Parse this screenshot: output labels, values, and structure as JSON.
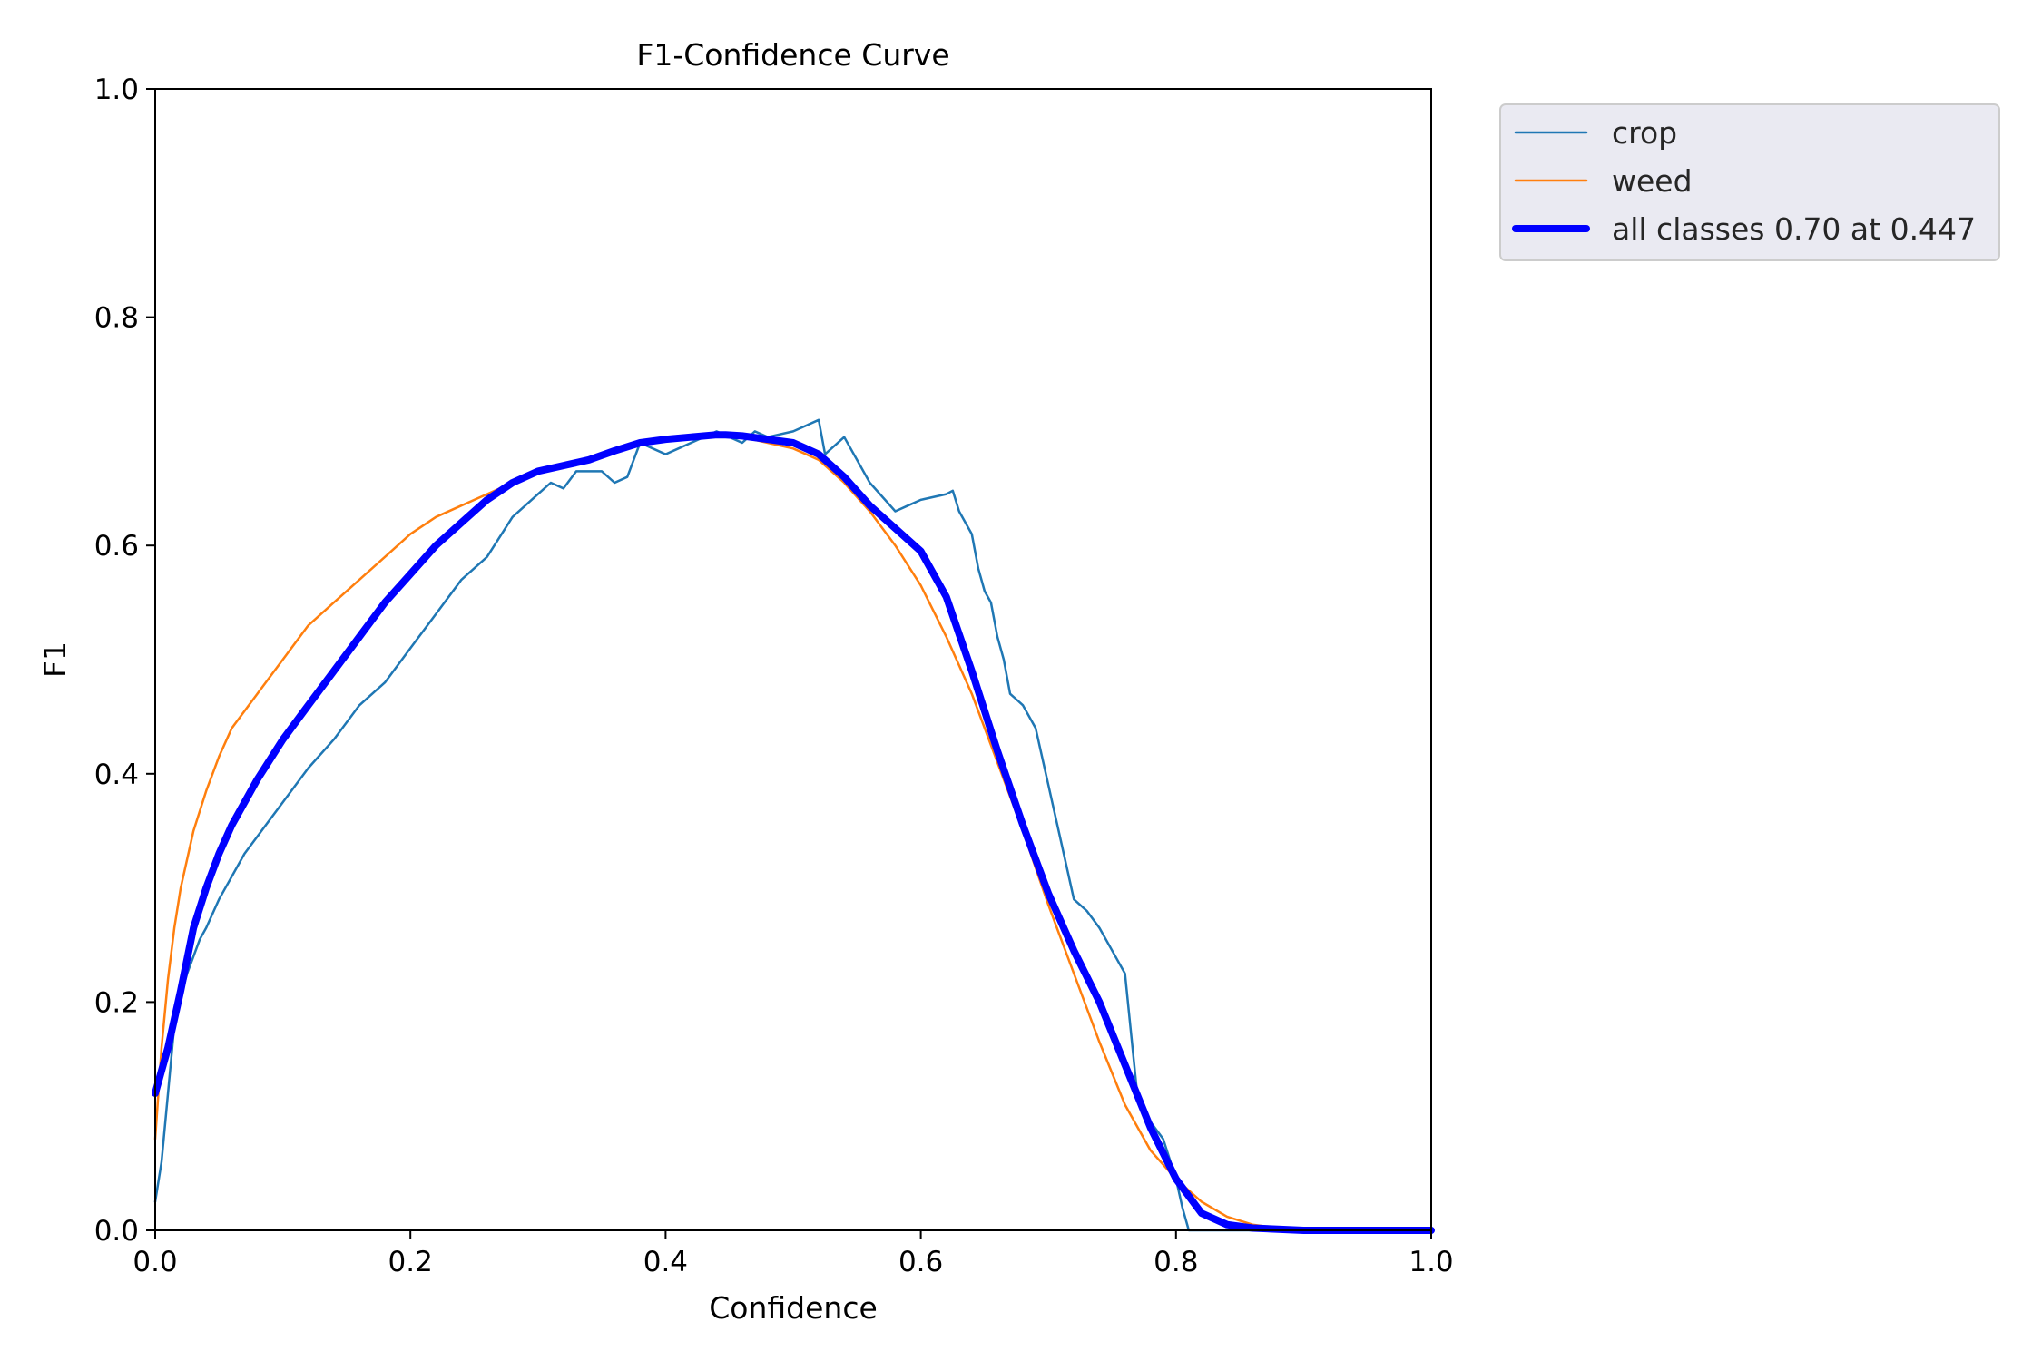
{
  "chart_data": {
    "type": "line",
    "title": "F1-Confidence Curve",
    "xlabel": "Confidence",
    "ylabel": "F1",
    "xlim": [
      0,
      1
    ],
    "ylim": [
      0,
      1
    ],
    "xticks": [
      "0.0",
      "0.2",
      "0.4",
      "0.6",
      "0.8",
      "1.0"
    ],
    "yticks": [
      "0.0",
      "0.2",
      "0.4",
      "0.6",
      "0.8",
      "1.0"
    ],
    "grid": false,
    "legend_position": "outside-top-right",
    "series": [
      {
        "name": "crop",
        "color": "#1f77b4",
        "x": [
          0.0,
          0.005,
          0.01,
          0.015,
          0.02,
          0.025,
          0.03,
          0.035,
          0.04,
          0.05,
          0.06,
          0.07,
          0.08,
          0.09,
          0.1,
          0.12,
          0.14,
          0.16,
          0.18,
          0.2,
          0.22,
          0.24,
          0.26,
          0.28,
          0.3,
          0.31,
          0.32,
          0.33,
          0.35,
          0.36,
          0.37,
          0.38,
          0.39,
          0.4,
          0.41,
          0.42,
          0.43,
          0.44,
          0.45,
          0.46,
          0.47,
          0.48,
          0.5,
          0.52,
          0.525,
          0.54,
          0.56,
          0.58,
          0.59,
          0.6,
          0.62,
          0.625,
          0.63,
          0.64,
          0.645,
          0.65,
          0.655,
          0.66,
          0.665,
          0.67,
          0.675,
          0.68,
          0.69,
          0.7,
          0.71,
          0.72,
          0.73,
          0.74,
          0.75,
          0.76,
          0.77,
          0.78,
          0.79,
          0.8,
          0.805,
          0.81,
          0.85,
          0.9,
          1.0
        ],
        "y": [
          0.025,
          0.06,
          0.12,
          0.18,
          0.205,
          0.225,
          0.24,
          0.255,
          0.265,
          0.29,
          0.31,
          0.33,
          0.345,
          0.36,
          0.375,
          0.405,
          0.43,
          0.46,
          0.48,
          0.51,
          0.54,
          0.57,
          0.59,
          0.625,
          0.645,
          0.655,
          0.65,
          0.665,
          0.665,
          0.655,
          0.66,
          0.69,
          0.685,
          0.68,
          0.685,
          0.69,
          0.695,
          0.7,
          0.695,
          0.69,
          0.7,
          0.695,
          0.7,
          0.71,
          0.68,
          0.695,
          0.655,
          0.63,
          0.635,
          0.64,
          0.645,
          0.648,
          0.63,
          0.61,
          0.58,
          0.56,
          0.55,
          0.52,
          0.5,
          0.47,
          0.465,
          0.46,
          0.44,
          0.39,
          0.34,
          0.29,
          0.28,
          0.265,
          0.245,
          0.225,
          0.115,
          0.095,
          0.08,
          0.045,
          0.02,
          0.0,
          0.0,
          0.0,
          0.0
        ]
      },
      {
        "name": "weed",
        "color": "#ff7f0e",
        "x": [
          0.0,
          0.005,
          0.01,
          0.015,
          0.02,
          0.03,
          0.04,
          0.05,
          0.06,
          0.08,
          0.1,
          0.12,
          0.14,
          0.16,
          0.18,
          0.2,
          0.22,
          0.24,
          0.26,
          0.28,
          0.3,
          0.32,
          0.34,
          0.36,
          0.38,
          0.4,
          0.42,
          0.44,
          0.46,
          0.48,
          0.5,
          0.52,
          0.54,
          0.56,
          0.58,
          0.6,
          0.62,
          0.64,
          0.66,
          0.68,
          0.7,
          0.72,
          0.74,
          0.76,
          0.78,
          0.8,
          0.82,
          0.84,
          0.86,
          0.88,
          0.9,
          1.0
        ],
        "y": [
          0.08,
          0.16,
          0.22,
          0.265,
          0.3,
          0.35,
          0.385,
          0.415,
          0.44,
          0.47,
          0.5,
          0.53,
          0.55,
          0.57,
          0.59,
          0.61,
          0.625,
          0.635,
          0.645,
          0.655,
          0.665,
          0.67,
          0.675,
          0.685,
          0.69,
          0.695,
          0.697,
          0.697,
          0.695,
          0.69,
          0.685,
          0.675,
          0.655,
          0.63,
          0.6,
          0.565,
          0.52,
          0.47,
          0.41,
          0.35,
          0.285,
          0.225,
          0.165,
          0.11,
          0.07,
          0.045,
          0.025,
          0.012,
          0.005,
          0.002,
          0.001,
          0.0
        ]
      },
      {
        "name": "all classes 0.70 at 0.447",
        "color": "#0000ff",
        "x": [
          0.0,
          0.01,
          0.02,
          0.03,
          0.04,
          0.05,
          0.06,
          0.08,
          0.1,
          0.12,
          0.14,
          0.16,
          0.18,
          0.2,
          0.22,
          0.24,
          0.26,
          0.28,
          0.3,
          0.32,
          0.34,
          0.36,
          0.38,
          0.4,
          0.42,
          0.44,
          0.447,
          0.46,
          0.48,
          0.5,
          0.52,
          0.54,
          0.56,
          0.58,
          0.6,
          0.62,
          0.64,
          0.66,
          0.68,
          0.7,
          0.72,
          0.74,
          0.76,
          0.78,
          0.8,
          0.82,
          0.84,
          0.86,
          0.88,
          0.9,
          1.0
        ],
        "y": [
          0.12,
          0.16,
          0.21,
          0.265,
          0.3,
          0.33,
          0.355,
          0.395,
          0.43,
          0.46,
          0.49,
          0.52,
          0.55,
          0.575,
          0.6,
          0.62,
          0.64,
          0.655,
          0.665,
          0.67,
          0.675,
          0.683,
          0.69,
          0.693,
          0.695,
          0.697,
          0.697,
          0.696,
          0.693,
          0.69,
          0.68,
          0.66,
          0.635,
          0.615,
          0.595,
          0.555,
          0.49,
          0.42,
          0.355,
          0.295,
          0.245,
          0.2,
          0.145,
          0.09,
          0.045,
          0.015,
          0.005,
          0.002,
          0.001,
          0.0,
          0.0
        ]
      }
    ]
  }
}
